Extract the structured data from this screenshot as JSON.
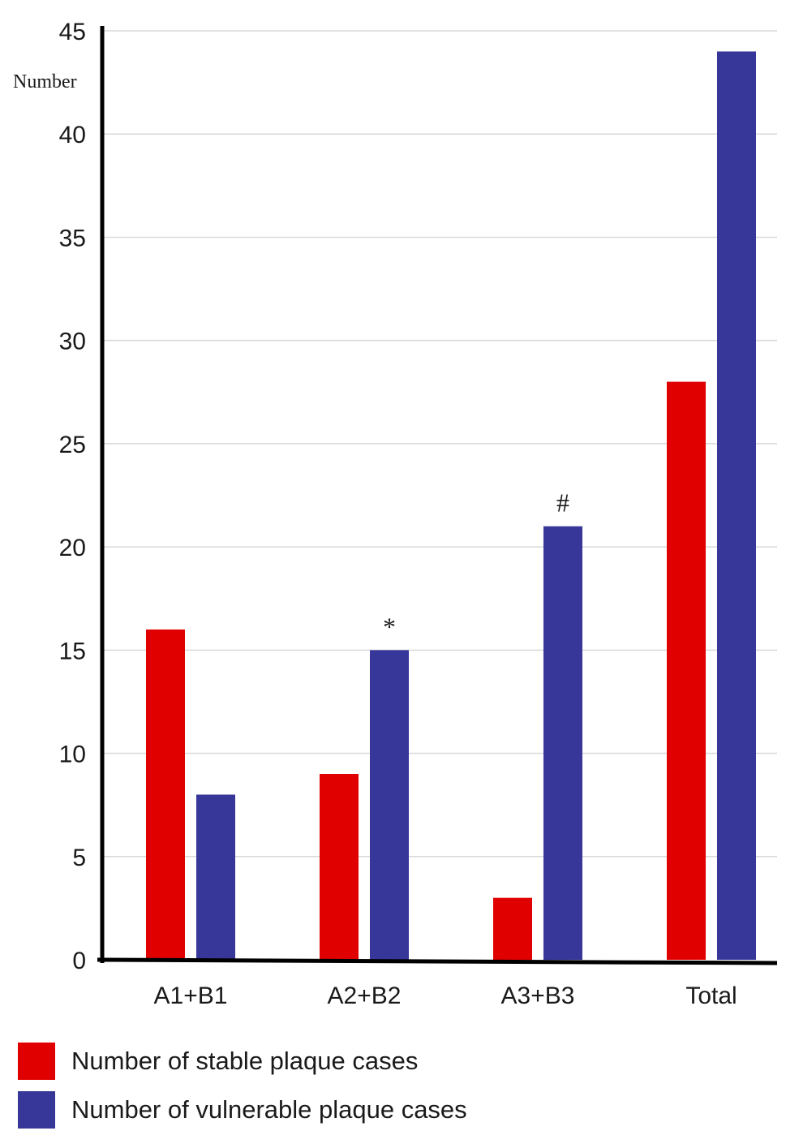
{
  "chart_data": {
    "type": "bar",
    "title": "",
    "xlabel": "",
    "ylabel": "Number",
    "ylim": [
      0,
      45
    ],
    "yticks": [
      0,
      5,
      10,
      15,
      20,
      25,
      30,
      35,
      40,
      45
    ],
    "grid": true,
    "legend_position": "bottom",
    "categories": [
      "A1+B1",
      "A2+B2",
      "A3+B3",
      "Total"
    ],
    "series": [
      {
        "name": "Number of stable plaque cases",
        "color": "#e00000",
        "values": [
          16,
          9,
          3,
          28
        ]
      },
      {
        "name": "Number of vulnerable plaque cases",
        "color": "#37379a",
        "values": [
          8,
          15,
          21,
          44
        ]
      }
    ],
    "annotations": [
      {
        "text": "*",
        "category": "A2+B2",
        "series": 1
      },
      {
        "text": "#",
        "category": "A3+B3",
        "series": 1
      }
    ]
  }
}
